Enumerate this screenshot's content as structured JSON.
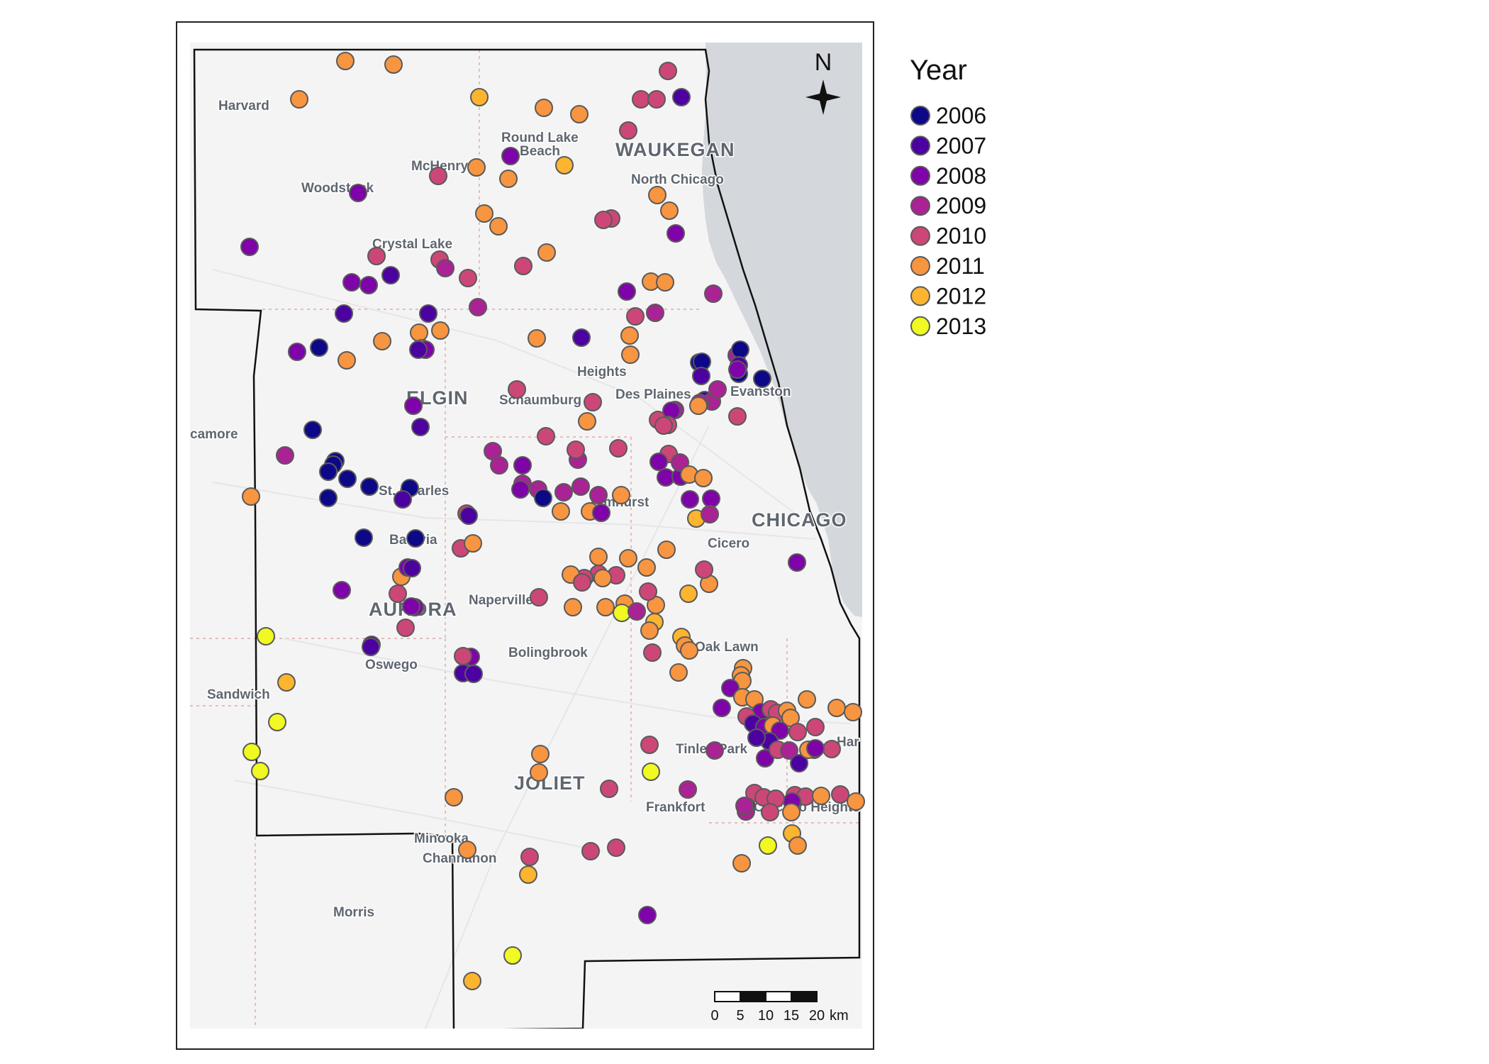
{
  "legend": {
    "title": "Year",
    "entries": [
      {
        "label": "2006",
        "color": "#0d0887"
      },
      {
        "label": "2007",
        "color": "#4c02a1"
      },
      {
        "label": "2008",
        "color": "#7e03a8"
      },
      {
        "label": "2009",
        "color": "#a92395"
      },
      {
        "label": "2010",
        "color": "#cc4778"
      },
      {
        "label": "2011",
        "color": "#f89540"
      },
      {
        "label": "2012",
        "color": "#fdb42f"
      },
      {
        "label": "2013",
        "color": "#f0f921"
      }
    ]
  },
  "north_arrow": {
    "label": "N"
  },
  "scale_bar": {
    "labels": [
      "0",
      "5",
      "10",
      "15",
      "20"
    ],
    "unit": "km"
  },
  "places": {
    "harvard": "Harvard",
    "round_lake_beach_1": "Round Lake",
    "round_lake_beach_2": "Beach",
    "waukegan": "WAUKEGAN",
    "mchenry": "McHenry",
    "north_chicago": "North Chicago",
    "woodstock": "Woodstock",
    "crystal_lake": "Crystal Lake",
    "arlington_heights": "Heights",
    "des_plaines": "Des Plaines",
    "evanston": "Evanston",
    "elgin": "ELGIN",
    "schaumburg": "Schaumburg",
    "sycamore": "camore",
    "st_charles": "St. Charles",
    "elmhurst": "Elmhurst",
    "chicago": "CHICAGO",
    "batavia": "Batavia",
    "cicero": "Cicero",
    "aurora": "AURORA",
    "naperville": "Naperville",
    "oak_lawn": "Oak Lawn",
    "oswego": "Oswego",
    "bolingbrook": "Bolingbrook",
    "sandwich": "Sandwich",
    "tinley_park": "Tinley Park",
    "joliet": "JOLIET",
    "frankfort": "Frankfort",
    "chicago_heights": "Chicago Heights",
    "minooka": "Minooka",
    "channahon": "Channahon",
    "morris": "Morris",
    "harvey": "Har"
  },
  "sites": [
    [
      487,
      86,
      6
    ],
    [
      555,
      91,
      6
    ],
    [
      422,
      140,
      6
    ],
    [
      676,
      137,
      7
    ],
    [
      767,
      152,
      6
    ],
    [
      817,
      161,
      6
    ],
    [
      942,
      100,
      5
    ],
    [
      904,
      140,
      5
    ],
    [
      926,
      140,
      5
    ],
    [
      961,
      137,
      2
    ],
    [
      886,
      184,
      5
    ],
    [
      720,
      220,
      3
    ],
    [
      672,
      236,
      6
    ],
    [
      717,
      252,
      6
    ],
    [
      796,
      233,
      7
    ],
    [
      618,
      248,
      5
    ],
    [
      505,
      272,
      3
    ],
    [
      927,
      275,
      6
    ],
    [
      944,
      297,
      6
    ],
    [
      683,
      301,
      6
    ],
    [
      703,
      319,
      6
    ],
    [
      862,
      308,
      5
    ],
    [
      851,
      310,
      5
    ],
    [
      953,
      329,
      3
    ],
    [
      352,
      348,
      3
    ],
    [
      531,
      361,
      5
    ],
    [
      620,
      366,
      5
    ],
    [
      628,
      378,
      4
    ],
    [
      660,
      392,
      5
    ],
    [
      496,
      398,
      3
    ],
    [
      520,
      402,
      3
    ],
    [
      551,
      388,
      2
    ],
    [
      771,
      356,
      6
    ],
    [
      738,
      375,
      5
    ],
    [
      1006,
      414,
      4
    ],
    [
      918,
      397,
      6
    ],
    [
      938,
      398,
      6
    ],
    [
      884,
      411,
      3
    ],
    [
      674,
      433,
      4
    ],
    [
      604,
      442,
      2
    ],
    [
      485,
      442,
      2
    ],
    [
      896,
      446,
      5
    ],
    [
      924,
      441,
      4
    ],
    [
      591,
      469,
      6
    ],
    [
      539,
      481,
      6
    ],
    [
      595,
      491,
      6
    ],
    [
      621,
      466,
      6
    ],
    [
      450,
      490,
      1
    ],
    [
      419,
      496,
      3
    ],
    [
      489,
      508,
      6
    ],
    [
      600,
      493,
      3
    ],
    [
      590,
      493,
      2
    ],
    [
      820,
      476,
      2
    ],
    [
      757,
      477,
      6
    ],
    [
      889,
      500,
      6
    ],
    [
      888,
      473,
      6
    ],
    [
      986,
      511,
      1
    ],
    [
      1039,
      501,
      4
    ],
    [
      1044,
      493,
      1
    ],
    [
      1042,
      515,
      2
    ],
    [
      1042,
      527,
      1
    ],
    [
      1075,
      534,
      1
    ],
    [
      990,
      510,
      1
    ],
    [
      1040,
      521,
      3
    ],
    [
      989,
      530,
      2
    ],
    [
      994,
      564,
      2
    ],
    [
      1004,
      566,
      4
    ],
    [
      987,
      568,
      4
    ],
    [
      1040,
      587,
      5
    ],
    [
      729,
      549,
      5
    ],
    [
      836,
      567,
      5
    ],
    [
      583,
      572,
      3
    ],
    [
      593,
      602,
      2
    ],
    [
      952,
      578,
      4
    ],
    [
      1012,
      549,
      4
    ],
    [
      985,
      572,
      6
    ],
    [
      928,
      592,
      5
    ],
    [
      947,
      579,
      3
    ],
    [
      942,
      599,
      5
    ],
    [
      770,
      615,
      5
    ],
    [
      828,
      594,
      6
    ],
    [
      936,
      600,
      5
    ],
    [
      441,
      606,
      1
    ],
    [
      473,
      650,
      1
    ],
    [
      470,
      655,
      1
    ],
    [
      463,
      665,
      1
    ],
    [
      490,
      675,
      1
    ],
    [
      521,
      686,
      1
    ],
    [
      578,
      688,
      1
    ],
    [
      568,
      704,
      2
    ],
    [
      463,
      702,
      1
    ],
    [
      402,
      642,
      4
    ],
    [
      354,
      700,
      6
    ],
    [
      695,
      636,
      4
    ],
    [
      704,
      656,
      4
    ],
    [
      737,
      682,
      4
    ],
    [
      737,
      656,
      3
    ],
    [
      815,
      648,
      4
    ],
    [
      759,
      690,
      4
    ],
    [
      795,
      694,
      4
    ],
    [
      819,
      686,
      4
    ],
    [
      766,
      702,
      1
    ],
    [
      734,
      690,
      3
    ],
    [
      791,
      721,
      6
    ],
    [
      832,
      721,
      6
    ],
    [
      844,
      698,
      4
    ],
    [
      812,
      634,
      5
    ],
    [
      872,
      632,
      5
    ],
    [
      943,
      640,
      5
    ],
    [
      939,
      673,
      3
    ],
    [
      960,
      672,
      3
    ],
    [
      959,
      652,
      4
    ],
    [
      929,
      651,
      3
    ],
    [
      972,
      669,
      6
    ],
    [
      992,
      674,
      6
    ],
    [
      973,
      704,
      3
    ],
    [
      1003,
      703,
      3
    ],
    [
      982,
      731,
      7
    ],
    [
      1001,
      725,
      4
    ],
    [
      876,
      698,
      6
    ],
    [
      658,
      724,
      5
    ],
    [
      848,
      723,
      3
    ],
    [
      661,
      727,
      2
    ],
    [
      586,
      759,
      1
    ],
    [
      513,
      758,
      1
    ],
    [
      650,
      773,
      5
    ],
    [
      667,
      766,
      6
    ],
    [
      844,
      785,
      6
    ],
    [
      940,
      775,
      6
    ],
    [
      886,
      787,
      6
    ],
    [
      844,
      809,
      5
    ],
    [
      912,
      800,
      6
    ],
    [
      869,
      811,
      5
    ],
    [
      824,
      815,
      5
    ],
    [
      805,
      810,
      6
    ],
    [
      850,
      815,
      6
    ],
    [
      821,
      821,
      5
    ],
    [
      1000,
      823,
      6
    ],
    [
      993,
      803,
      5
    ],
    [
      1124,
      793,
      3
    ],
    [
      760,
      842,
      5
    ],
    [
      808,
      856,
      6
    ],
    [
      854,
      856,
      6
    ],
    [
      881,
      851,
      6
    ],
    [
      925,
      853,
      6
    ],
    [
      971,
      837,
      7
    ],
    [
      914,
      834,
      5
    ],
    [
      877,
      864,
      8
    ],
    [
      898,
      862,
      4
    ],
    [
      923,
      877,
      7
    ],
    [
      482,
      832,
      3
    ],
    [
      566,
      813,
      6
    ],
    [
      561,
      837,
      5
    ],
    [
      575,
      800,
      3
    ],
    [
      585,
      856,
      3
    ],
    [
      581,
      801,
      2
    ],
    [
      580,
      855,
      3
    ],
    [
      572,
      885,
      5
    ],
    [
      664,
      926,
      3
    ],
    [
      653,
      949,
      2
    ],
    [
      524,
      909,
      3
    ],
    [
      523,
      912,
      2
    ],
    [
      375,
      897,
      8
    ],
    [
      404,
      962,
      7
    ],
    [
      391,
      1018,
      8
    ],
    [
      355,
      1060,
      8
    ],
    [
      367,
      1087,
      8
    ],
    [
      653,
      925,
      5
    ],
    [
      668,
      950,
      2
    ],
    [
      961,
      898,
      7
    ],
    [
      966,
      910,
      6
    ],
    [
      916,
      889,
      6
    ],
    [
      920,
      920,
      5
    ],
    [
      972,
      917,
      6
    ],
    [
      957,
      948,
      6
    ],
    [
      1048,
      942,
      6
    ],
    [
      1045,
      952,
      6
    ],
    [
      1047,
      960,
      6
    ],
    [
      1030,
      970,
      3
    ],
    [
      1047,
      983,
      6
    ],
    [
      1064,
      986,
      6
    ],
    [
      1073,
      1004,
      3
    ],
    [
      1087,
      1000,
      5
    ],
    [
      1096,
      1005,
      5
    ],
    [
      1110,
      1002,
      6
    ],
    [
      1138,
      986,
      6
    ],
    [
      1180,
      998,
      6
    ],
    [
      1203,
      1004,
      6
    ],
    [
      1115,
      1012,
      6
    ],
    [
      1018,
      998,
      3
    ],
    [
      1053,
      1010,
      5
    ],
    [
      1062,
      1020,
      2
    ],
    [
      1078,
      1025,
      3
    ],
    [
      1090,
      1023,
      6
    ],
    [
      1100,
      1030,
      3
    ],
    [
      1125,
      1032,
      5
    ],
    [
      1150,
      1025,
      5
    ],
    [
      1173,
      1056,
      5
    ],
    [
      1148,
      1057,
      5
    ],
    [
      1085,
      1045,
      2
    ],
    [
      1067,
      1040,
      2
    ],
    [
      1079,
      1069,
      3
    ],
    [
      1097,
      1057,
      5
    ],
    [
      1113,
      1058,
      4
    ],
    [
      1127,
      1076,
      2
    ],
    [
      1140,
      1057,
      6
    ],
    [
      1150,
      1055,
      3
    ],
    [
      1121,
      1121,
      5
    ],
    [
      1136,
      1123,
      5
    ],
    [
      1158,
      1122,
      6
    ],
    [
      1185,
      1120,
      5
    ],
    [
      1207,
      1130,
      6
    ],
    [
      1117,
      1130,
      3
    ],
    [
      1064,
      1118,
      5
    ],
    [
      1077,
      1124,
      5
    ],
    [
      1053,
      1137,
      3
    ],
    [
      1052,
      1144,
      4
    ],
    [
      1094,
      1126,
      5
    ],
    [
      1050,
      1136,
      4
    ],
    [
      916,
      1050,
      5
    ],
    [
      1008,
      1058,
      4
    ],
    [
      970,
      1113,
      4
    ],
    [
      918,
      1088,
      8
    ],
    [
      859,
      1112,
      5
    ],
    [
      869,
      1195,
      5
    ],
    [
      833,
      1200,
      5
    ],
    [
      762,
      1063,
      6
    ],
    [
      760,
      1089,
      6
    ],
    [
      640,
      1124,
      6
    ],
    [
      659,
      1198,
      6
    ],
    [
      747,
      1208,
      5
    ],
    [
      745,
      1233,
      7
    ],
    [
      1083,
      1192,
      8
    ],
    [
      1117,
      1175,
      7
    ],
    [
      1125,
      1192,
      6
    ],
    [
      1046,
      1217,
      6
    ],
    [
      913,
      1290,
      3
    ],
    [
      723,
      1347,
      8
    ],
    [
      666,
      1383,
      7
    ],
    [
      1086,
      1145,
      5
    ],
    [
      1116,
      1145,
      6
    ]
  ]
}
